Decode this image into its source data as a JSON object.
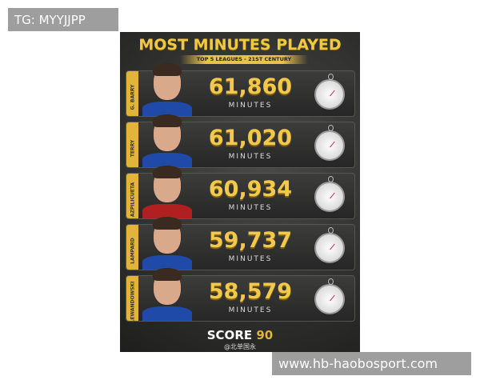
{
  "overlay": {
    "top_left": "TG: MYYJJPP",
    "bottom_right": "www.hb-haobosport.com"
  },
  "infographic": {
    "title": "MOST MINUTES PLAYED",
    "subtitle": "TOP 5 LEAGUES - 21ST CENTURY",
    "unit": "MINUTES",
    "accent": "#e1b53a",
    "players": [
      {
        "name": "G. BARRY",
        "minutes": "61,860",
        "shirt": "#1f4aa8"
      },
      {
        "name": "TERRY",
        "minutes": "61,020",
        "shirt": "#1f4aa8"
      },
      {
        "name": "AZPILICUETA",
        "minutes": "60,934",
        "shirt": "#b02020"
      },
      {
        "name": "LAMPARD",
        "minutes": "59,737",
        "shirt": "#1f4aa8"
      },
      {
        "name": "LEWANDOWSKI",
        "minutes": "58,579",
        "shirt": "#1f4aa8"
      }
    ],
    "brand": "SCORE",
    "brand_num": "90",
    "watermark": "@北单国永"
  }
}
